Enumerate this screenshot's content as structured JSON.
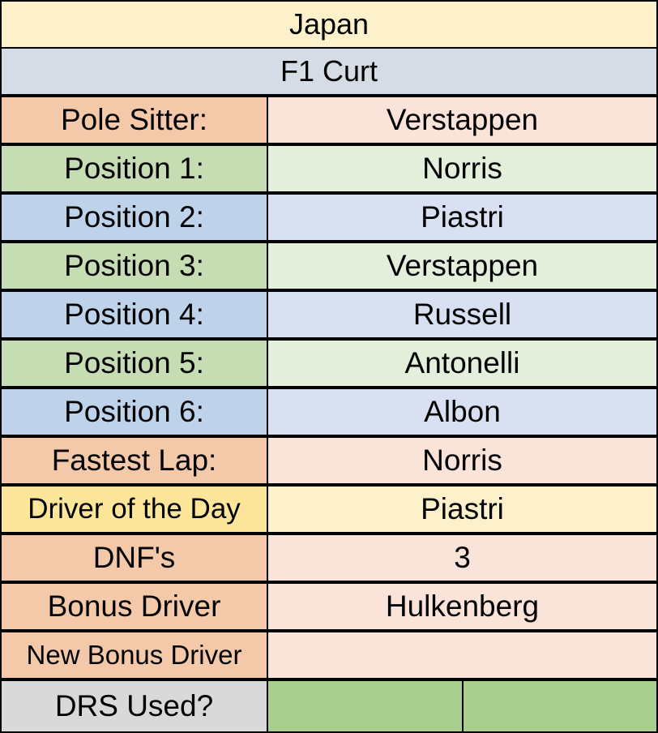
{
  "title": "Japan",
  "player": "F1 Curt",
  "colors": {
    "title_bg": "#fdf1cc",
    "player_bg": "#d6dce5",
    "orange_label": "#f4c9a9",
    "orange_value": "#fae3d8",
    "green_label": "#c6dcb2",
    "green_value": "#e3eedb",
    "blue_label": "#bed2e9",
    "blue_value": "#d9e0f1",
    "yellow_label": "#fde69a",
    "yellow_value": "#fdf1cc",
    "gray_label": "#d9d9d9",
    "green_fill": "#a9cf8f"
  },
  "rows": [
    {
      "label": "Pole Sitter:",
      "value": "Verstappen"
    },
    {
      "label": "Position 1:",
      "value": "Norris"
    },
    {
      "label": "Position 2:",
      "value": "Piastri"
    },
    {
      "label": "Position 3:",
      "value": "Verstappen"
    },
    {
      "label": "Position 4:",
      "value": "Russell"
    },
    {
      "label": "Position 5:",
      "value": "Antonelli"
    },
    {
      "label": "Position 6:",
      "value": "Albon"
    },
    {
      "label": "Fastest Lap:",
      "value": "Norris"
    },
    {
      "label": "Driver of the Day",
      "value": "Piastri"
    },
    {
      "label": "DNF's",
      "value": "3"
    },
    {
      "label": "Bonus Driver",
      "value": "Hulkenberg"
    },
    {
      "label": "New Bonus Driver",
      "value": ""
    },
    {
      "label": "DRS Used?",
      "value": ""
    }
  ]
}
